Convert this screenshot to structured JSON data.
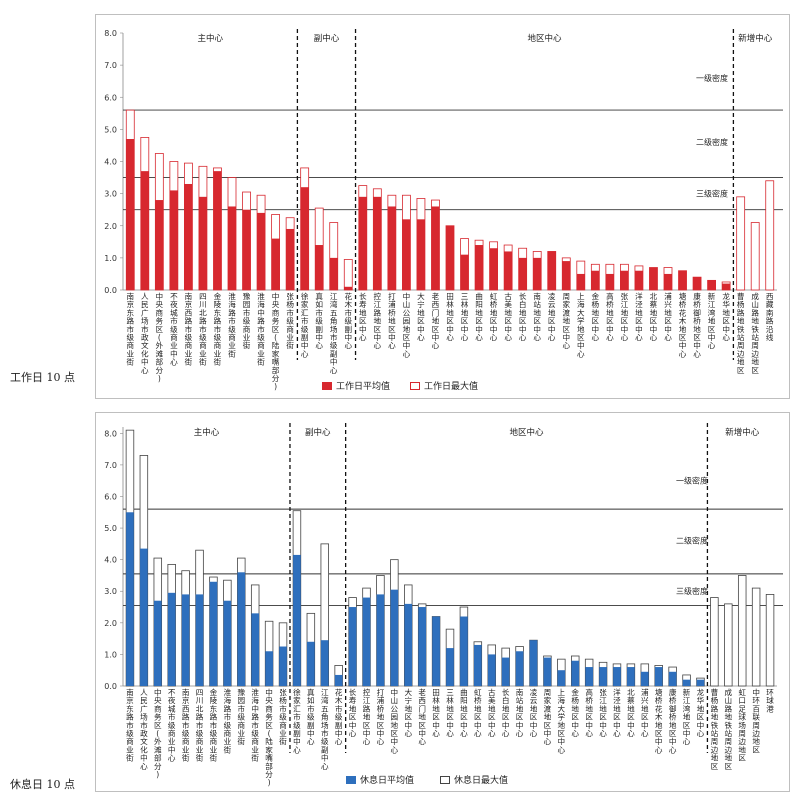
{
  "categories": [
    "南京东路市级商业街",
    "人民广场市政文化中心",
    "中央商务区(外滩部分)",
    "不夜城市级商业中心",
    "南京西路市级商业街",
    "四川北路市级商业街",
    "金陵东路市级商业街",
    "淮海路市级商业街",
    "豫园市级商业街",
    "淮海中路市级商业街",
    "中央商务区(陆家嘴部分)",
    "张杨市级商业街",
    "徐家汇市级副中心",
    "真如市级副中心",
    "江湾五角场市级副中心",
    "花木市级副中心",
    "长寿地区中心",
    "控江路地区中心",
    "打浦桥地区中心",
    "中山公园地区中心",
    "大宁地区中心",
    "老西门地区中心",
    "田林地区中心",
    "三林地区中心",
    "曲阳地区中心",
    "虹桥地区中心",
    "古美地区中心",
    "长白地区中心",
    "南站地区中心",
    "凌云地区中心",
    "周家渡地区中心",
    "上海大学地区中心",
    "金杨地区中心",
    "高桥地区中心",
    "张江地区中心",
    "洋泾地区中心",
    "北蔡地区中心",
    "浦兴地区中心",
    "塘桥花木地区中心",
    "康桥御桥地区中心",
    "新江湾地区中心",
    "龙华地区中心",
    "曹杨路地铁站周边地区",
    "成山路地铁站周边地区",
    "西藏南路沿线",
    "虹口足球场周边地区",
    "中环百联周边地区",
    "环球港"
  ],
  "groups": [
    "主中心",
    "副中心",
    "地区中心",
    "新增中心"
  ],
  "density_labels": [
    "一级密度",
    "二级密度",
    "三级密度"
  ],
  "colors": {
    "weekday": "#d7282f",
    "weekend": "#2e6fbd",
    "outline_weekday": "#d7282f",
    "outline_weekend": "#444444"
  },
  "charts": [
    {
      "caption": "工作日 10 点",
      "legend": {
        "avg": "工作日平均值",
        "max": "工作日最大值"
      },
      "chart_data": {
        "type": "bar",
        "categories": [
          "南京东路市级商业街",
          "人民广场市政文化中心",
          "中央商务区(外滩部分)",
          "不夜城市级商业中心",
          "南京西路市级商业街",
          "四川北路市级商业街",
          "金陵东路市级商业街",
          "淮海路市级商业街",
          "豫园市级商业街",
          "淮海中路市级商业街",
          "中央商务区(陆家嘴部分)",
          "张杨市级商业街",
          "徐家汇市级副中心",
          "真如市级副中心",
          "江湾五角场市级副中心",
          "花木市级副中心",
          "长寿地区中心",
          "控江路地区中心",
          "打浦桥地区中心",
          "中山公园地区中心",
          "大宁地区中心",
          "老西门地区中心",
          "田林地区中心",
          "三林地区中心",
          "曲阳地区中心",
          "虹桥地区中心",
          "古美地区中心",
          "长白地区中心",
          "南站地区中心",
          "凌云地区中心",
          "周家渡地区中心",
          "上海大学地区中心",
          "金杨地区中心",
          "高桥地区中心",
          "张江地区中心",
          "洋泾地区中心",
          "北蔡地区中心",
          "浦兴地区中心",
          "塘桥花木地区中心",
          "康桥御桥地区中心",
          "新江湾地区中心",
          "龙华地区中心",
          "曹杨路地铁站周边地区",
          "成山路地铁站周边地区",
          "西藏南路沿线"
        ],
        "series": [
          {
            "name": "工作日平均值",
            "values": [
              4.7,
              3.7,
              2.8,
              3.1,
              3.3,
              2.9,
              3.7,
              2.6,
              2.5,
              2.4,
              1.6,
              1.9,
              3.2,
              1.4,
              1.0,
              0.1,
              2.9,
              2.9,
              2.6,
              2.2,
              2.2,
              2.6,
              2.0,
              1.1,
              1.4,
              1.3,
              1.2,
              1.0,
              1.0,
              1.2,
              0.9,
              0.5,
              0.6,
              0.5,
              0.6,
              0.6,
              0.7,
              0.5,
              0.6,
              0.4,
              0.3,
              0.2,
              0,
              0,
              0
            ]
          },
          {
            "name": "工作日最大值",
            "values": [
              5.6,
              4.75,
              4.25,
              4.0,
              3.95,
              3.85,
              3.8,
              3.5,
              3.05,
              2.95,
              2.35,
              2.25,
              3.8,
              2.55,
              2.1,
              0.95,
              3.25,
              3.15,
              2.95,
              2.95,
              2.85,
              2.8,
              2.0,
              1.6,
              1.55,
              1.5,
              1.4,
              1.3,
              1.2,
              1.2,
              1.0,
              0.9,
              0.8,
              0.8,
              0.8,
              0.75,
              0.7,
              0.7,
              0.6,
              0.4,
              0.3,
              0.25,
              2.9,
              2.1,
              3.4
            ]
          }
        ],
        "ylim": [
          0,
          8
        ],
        "yticks": [
          "0.0",
          "1.0",
          "2.0",
          "3.0",
          "4.0",
          "5.0",
          "6.0",
          "7.0",
          "8.0"
        ]
      }
    },
    {
      "caption": "休息日 10 点",
      "legend": {
        "avg": "休息日平均值",
        "max": "休息日最大值"
      },
      "chart_data": {
        "type": "bar",
        "categories": [
          "南京东路市级商业街",
          "人民广场市政文化中心",
          "中央商务区(外滩部分)",
          "不夜城市级商业中心",
          "南京西路市级商业街",
          "四川北路市级商业街",
          "金陵东路市级商业街",
          "淮海路市级商业街",
          "豫园市级商业街",
          "淮海中路市级商业街",
          "中央商务区(陆家嘴部分)",
          "张杨市级商业街",
          "徐家汇市级副中心",
          "真如市级副中心",
          "江湾五角场市级副中心",
          "花木市级副中心",
          "长寿地区中心",
          "控江路地区中心",
          "打浦桥地区中心",
          "中山公园地区中心",
          "大宁地区中心",
          "老西门地区中心",
          "田林地区中心",
          "三林地区中心",
          "曲阳地区中心",
          "虹桥地区中心",
          "古美地区中心",
          "长白地区中心",
          "南站地区中心",
          "凌云地区中心",
          "周家渡地区中心",
          "上海大学地区中心",
          "金杨地区中心",
          "高桥地区中心",
          "张江地区中心",
          "洋泾地区中心",
          "北蔡地区中心",
          "浦兴地区中心",
          "塘桥花木地区中心",
          "康桥御桥地区中心",
          "新江湾地区中心",
          "龙华地区中心",
          "曹杨路地铁站周边地区",
          "成山路地铁站周边地区",
          "虹口足球场周边地区",
          "中环百联周边地区",
          "环球港"
        ],
        "series": [
          {
            "name": "休息日平均值",
            "values": [
              5.5,
              4.35,
              2.7,
              2.95,
              2.9,
              2.9,
              3.3,
              2.7,
              3.6,
              2.3,
              1.1,
              1.25,
              4.15,
              1.4,
              1.45,
              0.35,
              2.5,
              2.8,
              2.9,
              3.05,
              2.6,
              2.5,
              2.2,
              1.2,
              2.2,
              1.3,
              1.0,
              0.9,
              1.1,
              1.45,
              0.9,
              0.5,
              0.8,
              0.6,
              0.6,
              0.6,
              0.6,
              0.45,
              0.6,
              0.45,
              0.2,
              0.2,
              0,
              0,
              0,
              0,
              0
            ]
          },
          {
            "name": "休息日最大值",
            "values": [
              8.1,
              7.3,
              4.05,
              3.85,
              3.65,
              4.3,
              3.45,
              3.35,
              4.05,
              3.2,
              2.05,
              2.0,
              5.55,
              2.3,
              4.5,
              0.65,
              2.8,
              3.1,
              3.5,
              4.0,
              3.2,
              2.6,
              2.2,
              1.8,
              2.5,
              1.4,
              1.3,
              1.2,
              1.25,
              1.45,
              0.95,
              0.85,
              0.95,
              0.85,
              0.75,
              0.7,
              0.7,
              0.7,
              0.65,
              0.6,
              0.35,
              0.25,
              2.8,
              2.6,
              3.5,
              3.1,
              2.9
            ]
          }
        ],
        "ylim": [
          0,
          8.2
        ],
        "yticks": [
          "0.0",
          "1.0",
          "2.0",
          "3.0",
          "4.0",
          "5.0",
          "6.0",
          "7.0",
          "8.0"
        ]
      }
    }
  ]
}
